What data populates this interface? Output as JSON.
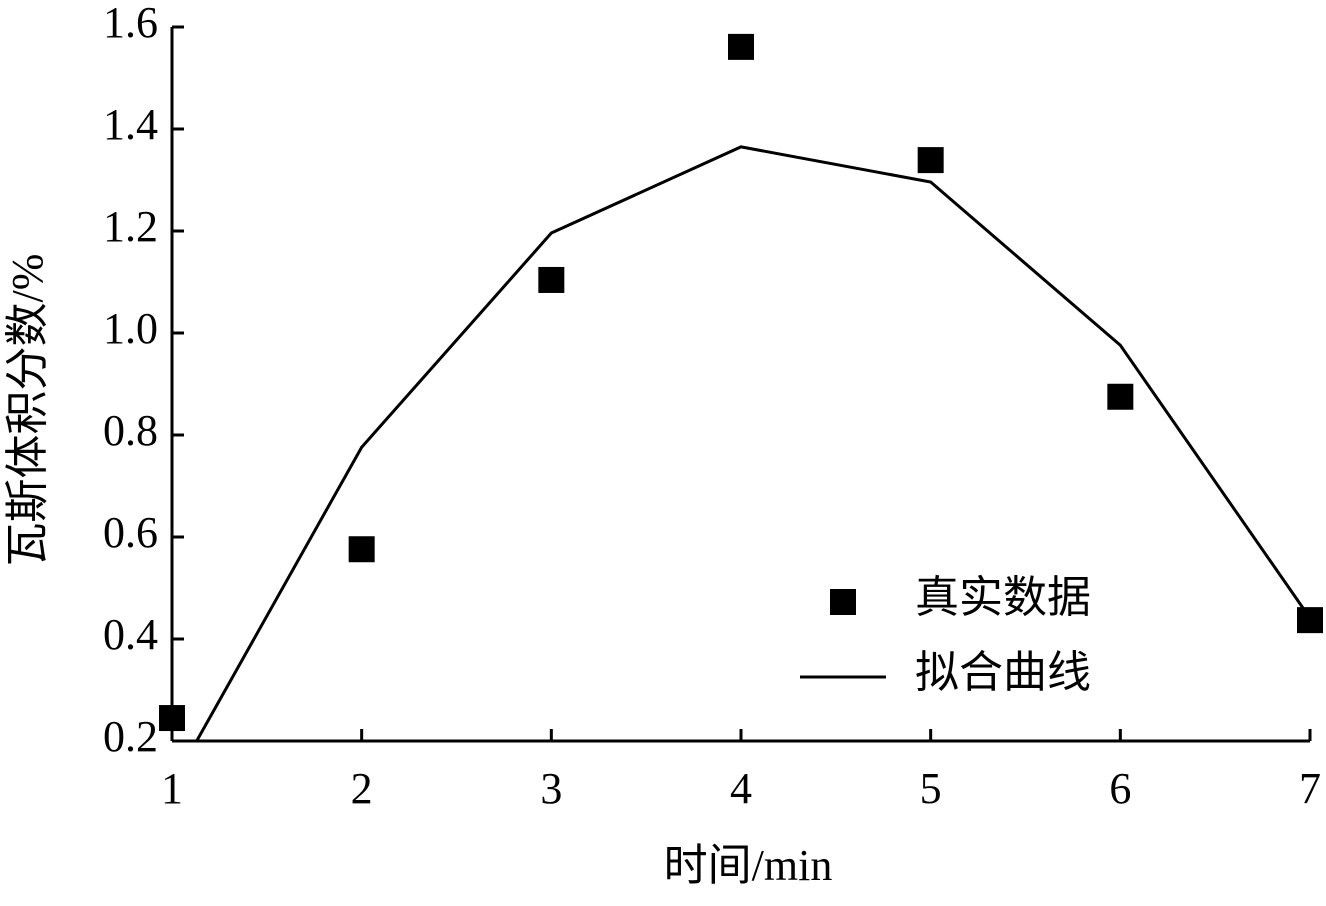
{
  "chart_data": {
    "type": "scatter",
    "xlabel": "时间/min",
    "ylabel": "瓦斯体积分数/%",
    "xlim": [
      1,
      7
    ],
    "xticks": [
      1,
      2,
      3,
      4,
      5,
      6,
      7
    ],
    "ylim": [
      0.2,
      1.6
    ],
    "yticks": [
      0.2,
      0.4,
      0.6,
      0.8,
      {
        "value": 1,
        "label": "1.0"
      },
      1.2,
      1.4,
      1.6
    ],
    "legend": "lower right",
    "series": [
      {
        "name": "真实数据",
        "style": "marker",
        "color": "#000000",
        "x": [
          1,
          2,
          3,
          4,
          5,
          6,
          7
        ],
        "values": [
          0.245,
          0.576,
          1.104,
          1.561,
          1.339,
          0.875,
          0.437
        ]
      },
      {
        "name": "拟合曲线",
        "style": "line",
        "color": "#000000",
        "x": [
          1.13,
          2,
          3,
          4,
          5,
          6,
          7
        ],
        "values": [
          0.2,
          0.776,
          1.196,
          1.365,
          1.296,
          0.976,
          0.441
        ]
      }
    ]
  }
}
